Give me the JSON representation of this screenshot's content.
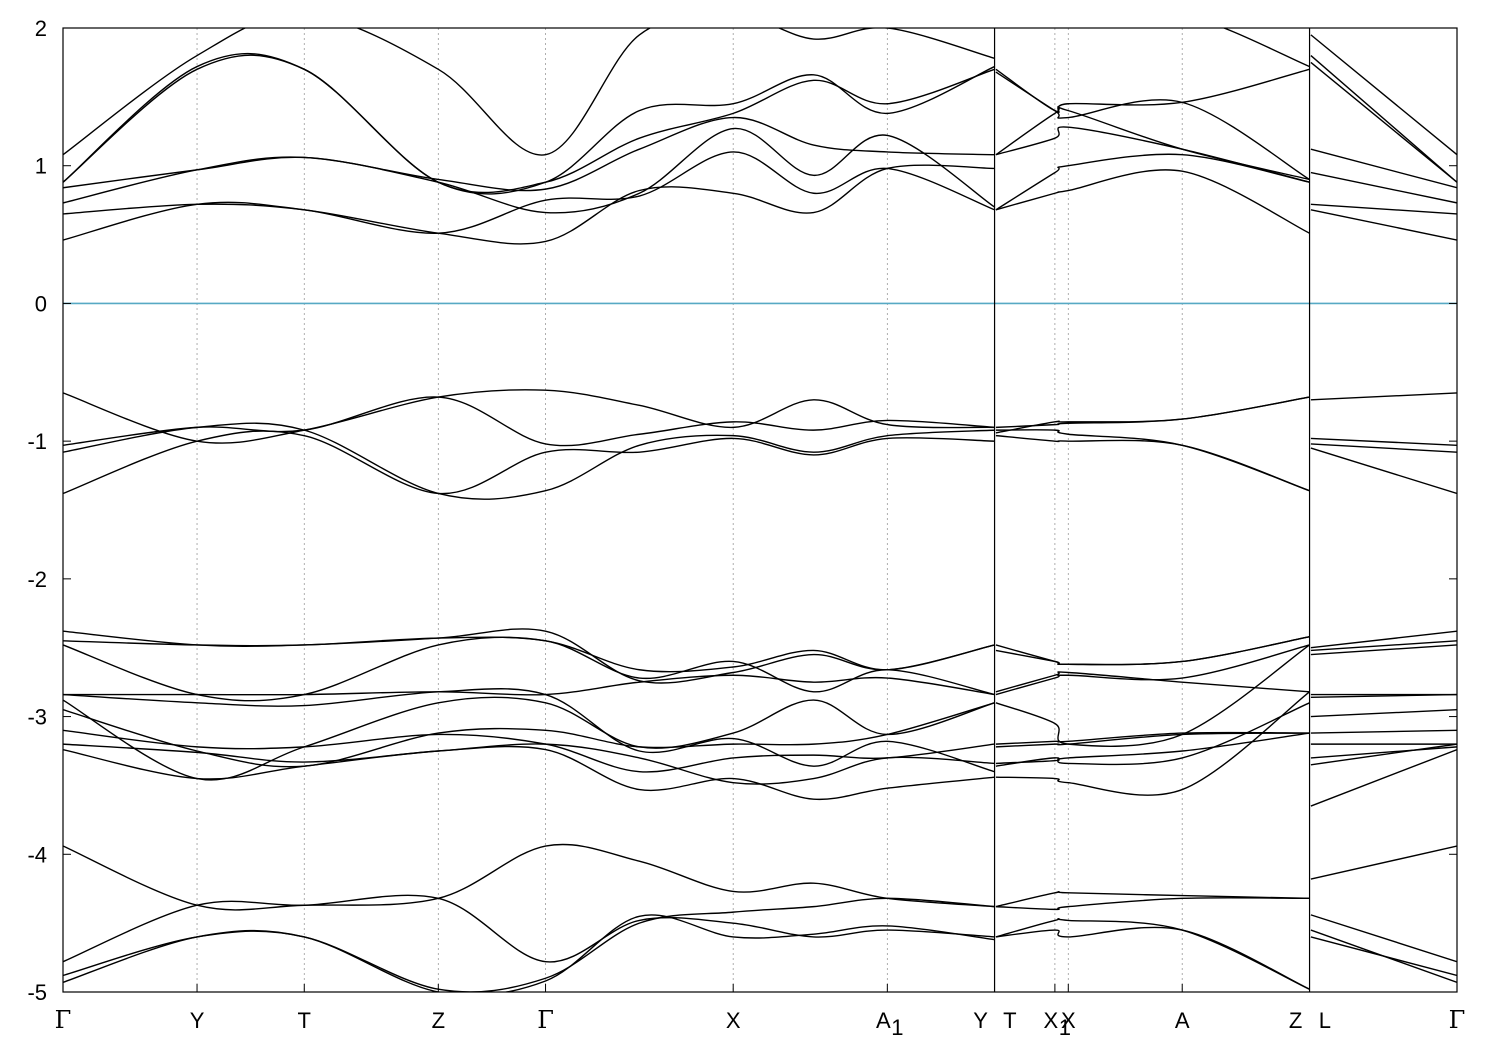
{
  "chart_data": {
    "type": "line",
    "title": "",
    "xlabel": "",
    "ylabel": "",
    "ylim": [
      -5,
      2
    ],
    "yticks": [
      -5,
      -4,
      -3,
      -2,
      -1,
      0,
      1,
      2
    ],
    "grid": "vertical dashed lines at high-symmetry points",
    "legend": "none",
    "fermi_level": 0,
    "fermi_color": "#57a9c4",
    "band_color": "#000000",
    "kpoints": [
      {
        "x": 0.0,
        "label": "Γ",
        "greek": true
      },
      {
        "x": 1.0,
        "label": "Y"
      },
      {
        "x": 1.8,
        "label": "T"
      },
      {
        "x": 2.8,
        "label": "Z"
      },
      {
        "x": 3.6,
        "label": "Γ",
        "greek": true
      },
      {
        "x": 5.0,
        "label": "X"
      },
      {
        "x": 6.15,
        "label": "A",
        "sub": "1"
      },
      {
        "x": 6.95,
        "label": "Y",
        "break_after": true
      },
      {
        "x": 6.96,
        "label": "T"
      },
      {
        "x": 7.4,
        "label": "X",
        "sub": "1"
      },
      {
        "x": 7.5,
        "label": "X"
      },
      {
        "x": 8.35,
        "label": "A"
      },
      {
        "x": 9.3,
        "label": "Z",
        "break_after": true
      },
      {
        "x": 9.31,
        "label": "L"
      },
      {
        "x": 10.4,
        "label": "Γ",
        "greek": true
      }
    ],
    "xrange": [
      0,
      10.4
    ],
    "segments": [
      {
        "name": "Gamma-Y-T-Z-Gamma-X-A1-Y",
        "x": [
          0.0,
          1.0,
          1.8,
          2.8,
          3.6,
          4.3,
          5.0,
          5.6,
          6.15,
          6.95
        ],
        "bands": [
          [
            -4.93,
            -4.6,
            -4.6,
            -5.0,
            -4.92,
            -4.45,
            -4.6,
            -4.58,
            -4.52,
            -4.62
          ],
          [
            -4.88,
            -4.6,
            -4.6,
            -4.98,
            -4.9,
            -4.5,
            -4.42,
            -4.38,
            -4.32,
            -4.38
          ],
          [
            -4.78,
            -4.37,
            -4.37,
            -4.32,
            -4.78,
            -4.48,
            -4.5,
            -4.6,
            -4.55,
            -4.6
          ],
          [
            -3.94,
            -4.37,
            -4.37,
            -4.32,
            -3.94,
            -4.05,
            -4.27,
            -4.21,
            -4.32,
            -4.38
          ],
          [
            -3.24,
            -3.45,
            -3.36,
            -3.25,
            -3.24,
            -3.53,
            -3.45,
            -3.6,
            -3.52,
            -3.44
          ],
          [
            -3.2,
            -3.26,
            -3.33,
            -3.25,
            -3.2,
            -3.3,
            -3.48,
            -3.45,
            -3.3,
            -3.34
          ],
          [
            -3.1,
            -3.22,
            -3.22,
            -3.13,
            -3.2,
            -3.4,
            -3.3,
            -3.28,
            -3.3,
            -3.2
          ],
          [
            -2.95,
            -3.25,
            -3.36,
            -3.12,
            -3.1,
            -3.22,
            -3.2,
            -3.2,
            -3.13,
            -2.9
          ],
          [
            -2.88,
            -3.45,
            -3.22,
            -2.9,
            -2.9,
            -3.22,
            -3.12,
            -2.88,
            -3.13,
            -2.9
          ],
          [
            -2.84,
            -2.9,
            -2.92,
            -2.82,
            -2.84,
            -3.25,
            -3.16,
            -3.36,
            -3.18,
            -3.4
          ],
          [
            -2.84,
            -2.84,
            -2.84,
            -2.82,
            -2.84,
            -2.75,
            -2.7,
            -2.75,
            -2.72,
            -2.84
          ],
          [
            -2.48,
            -2.84,
            -2.84,
            -2.48,
            -2.45,
            -2.72,
            -2.6,
            -2.82,
            -2.66,
            -2.84
          ],
          [
            -2.45,
            -2.48,
            -2.48,
            -2.43,
            -2.45,
            -2.66,
            -2.64,
            -2.52,
            -2.66,
            -2.48
          ],
          [
            -2.38,
            -2.48,
            -2.48,
            -2.43,
            -2.38,
            -2.74,
            -2.68,
            -2.55,
            -2.66,
            -2.48
          ],
          [
            -1.38,
            -1.0,
            -0.96,
            -1.38,
            -1.08,
            -1.08,
            -0.98,
            -1.1,
            -0.98,
            -1.0
          ],
          [
            -1.08,
            -0.9,
            -0.92,
            -1.38,
            -1.36,
            -1.03,
            -0.96,
            -1.08,
            -0.96,
            -0.92
          ],
          [
            -1.03,
            -0.9,
            -0.92,
            -0.68,
            -1.02,
            -0.95,
            -0.86,
            -0.92,
            -0.85,
            -0.9
          ],
          [
            -0.65,
            -1.0,
            -0.92,
            -0.68,
            -0.63,
            -0.74,
            -0.9,
            -0.7,
            -0.88,
            -0.9
          ],
          [
            0.46,
            0.72,
            0.68,
            0.51,
            0.45,
            0.82,
            0.8,
            0.66,
            0.98,
            0.98
          ],
          [
            0.65,
            0.72,
            0.68,
            0.51,
            0.75,
            0.78,
            1.1,
            0.8,
            0.98,
            0.68
          ],
          [
            0.73,
            0.97,
            1.06,
            0.88,
            0.66,
            0.8,
            1.27,
            0.93,
            1.22,
            0.7
          ],
          [
            0.84,
            0.97,
            1.06,
            0.9,
            0.83,
            1.12,
            1.35,
            1.15,
            1.1,
            1.08
          ],
          [
            0.88,
            1.7,
            1.7,
            0.88,
            0.88,
            1.4,
            1.45,
            1.66,
            1.38,
            1.72
          ],
          [
            0.88,
            1.72,
            1.7,
            0.88,
            0.88,
            1.2,
            1.38,
            1.62,
            1.45,
            1.7
          ],
          [
            1.08,
            1.8,
            2.1,
            1.7,
            1.08,
            1.95,
            2.1,
            1.92,
            2.0,
            1.78
          ]
        ]
      },
      {
        "name": "T-X1-X-A-Z",
        "x": [
          6.96,
          7.4,
          7.5,
          8.35,
          9.3
        ],
        "bands": [
          [
            -4.6,
            -4.55,
            -4.6,
            -4.55,
            -4.98
          ],
          [
            -4.38,
            -4.4,
            -4.38,
            -4.32,
            -4.32
          ],
          [
            -4.38,
            -4.28,
            -4.28,
            -4.3,
            -4.32
          ],
          [
            -4.6,
            -4.48,
            -4.48,
            -4.55,
            -4.98
          ],
          [
            -3.44,
            -3.45,
            -3.48,
            -3.53,
            -2.82
          ],
          [
            -3.36,
            -3.3,
            -3.34,
            -3.3,
            -2.9
          ],
          [
            -3.34,
            -3.32,
            -3.3,
            -3.25,
            -3.12
          ],
          [
            -3.22,
            -3.2,
            -3.2,
            -3.13,
            -3.12
          ],
          [
            -3.2,
            -3.18,
            -3.18,
            -3.12,
            -3.12
          ],
          [
            -2.9,
            -3.05,
            -3.2,
            -3.13,
            -2.48
          ],
          [
            -2.84,
            -2.72,
            -2.7,
            -2.72,
            -2.48
          ],
          [
            -2.82,
            -2.7,
            -2.68,
            -2.75,
            -2.82
          ],
          [
            -2.52,
            -2.6,
            -2.62,
            -2.6,
            -2.42
          ],
          [
            -2.48,
            -2.6,
            -2.62,
            -2.6,
            -2.42
          ],
          [
            -0.96,
            -1.0,
            -1.0,
            -1.03,
            -1.36
          ],
          [
            -0.92,
            -0.92,
            -0.95,
            -1.03,
            -1.36
          ],
          [
            -0.9,
            -0.88,
            -0.87,
            -0.84,
            -0.68
          ],
          [
            -0.94,
            -0.86,
            -0.86,
            -0.84,
            -0.68
          ],
          [
            0.68,
            0.8,
            0.82,
            0.96,
            0.51
          ],
          [
            0.68,
            0.95,
            1.0,
            1.08,
            0.88
          ],
          [
            1.08,
            1.2,
            1.28,
            1.12,
            0.88
          ],
          [
            1.08,
            1.38,
            1.4,
            1.12,
            0.9
          ],
          [
            1.68,
            1.4,
            1.35,
            1.46,
            0.9
          ],
          [
            1.7,
            1.4,
            1.45,
            1.46,
            1.7
          ],
          [
            2.08,
            2.1,
            2.1,
            2.1,
            1.72
          ]
        ]
      },
      {
        "name": "L-Gamma",
        "x": [
          9.31,
          10.4
        ],
        "bands": [
          [
            -4.55,
            -4.93
          ],
          [
            -4.6,
            -4.88
          ],
          [
            -4.44,
            -4.78
          ],
          [
            -4.18,
            -3.94
          ],
          [
            -3.65,
            -3.24
          ],
          [
            -3.35,
            -3.2
          ],
          [
            -3.3,
            -3.22
          ],
          [
            -3.2,
            -3.2
          ],
          [
            -3.12,
            -3.1
          ],
          [
            -3.0,
            -2.95
          ],
          [
            -2.86,
            -2.84
          ],
          [
            -2.84,
            -2.84
          ],
          [
            -2.55,
            -2.48
          ],
          [
            -2.52,
            -2.45
          ],
          [
            -2.5,
            -2.38
          ],
          [
            -1.05,
            -1.38
          ],
          [
            -1.02,
            -1.08
          ],
          [
            -0.98,
            -1.03
          ],
          [
            -0.7,
            -0.65
          ],
          [
            0.68,
            0.46
          ],
          [
            0.72,
            0.65
          ],
          [
            0.95,
            0.73
          ],
          [
            1.12,
            0.84
          ],
          [
            1.75,
            0.88
          ],
          [
            1.8,
            0.88
          ],
          [
            1.95,
            1.08
          ]
        ]
      }
    ]
  }
}
